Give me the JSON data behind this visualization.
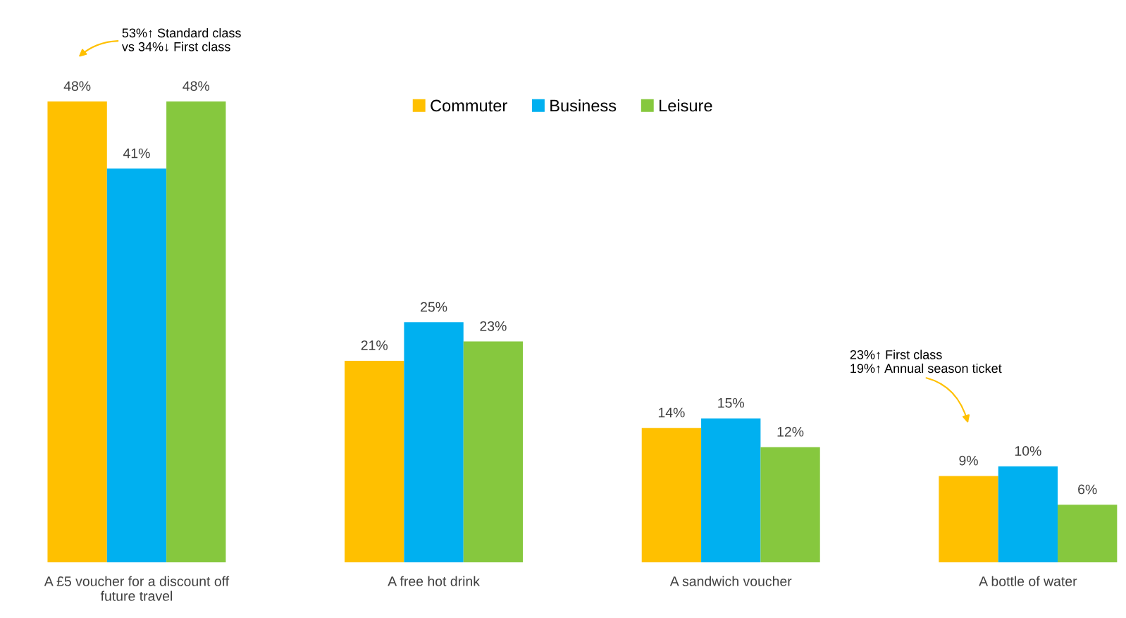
{
  "chart_data": {
    "type": "bar",
    "categories": [
      "A £5 voucher for a discount off\nfuture travel",
      "A free hot drink",
      "A sandwich voucher",
      "A bottle of water"
    ],
    "series": [
      {
        "name": "Commuter",
        "color": "#ffc000",
        "values": [
          48,
          21,
          14,
          9
        ],
        "value_labels": [
          "48%",
          "21%",
          "14%",
          "9%"
        ]
      },
      {
        "name": "Business",
        "color": "#00b0f0",
        "values": [
          41,
          25,
          15,
          10
        ],
        "value_labels": [
          "41%",
          "25%",
          "15%",
          "10%"
        ]
      },
      {
        "name": "Leisure",
        "color": "#86c83e",
        "values": [
          48,
          23,
          12,
          6
        ],
        "value_labels": [
          "48%",
          "23%",
          "12%",
          "6%"
        ]
      }
    ],
    "legend": "top",
    "grid": false,
    "annotations": [
      "53%↑ Standard class\nvs 34%↓ First class",
      "23%↑ First class\n19%↑ Annual season ticket"
    ]
  }
}
